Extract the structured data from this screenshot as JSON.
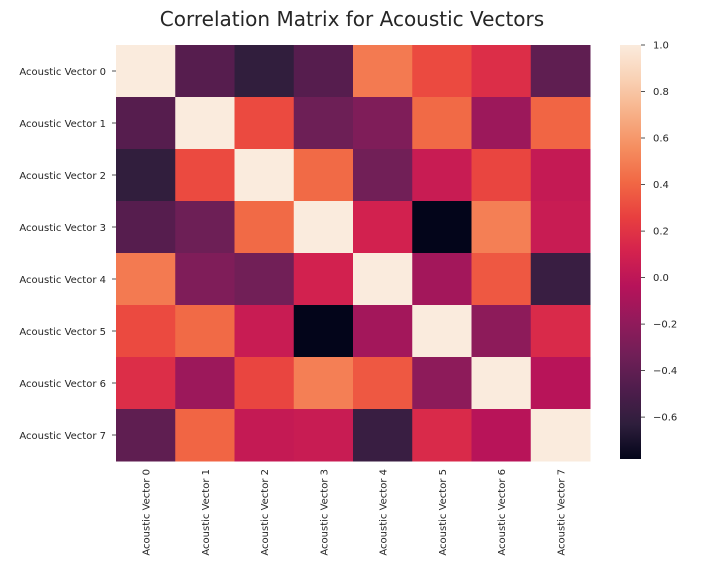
{
  "chart_data": {
    "type": "heatmap",
    "title": "Correlation Matrix for Acoustic Vectors",
    "xlabel": "",
    "ylabel": "",
    "x_categories": [
      "Acoustic Vector 0",
      "Acoustic Vector 1",
      "Acoustic Vector 2",
      "Acoustic Vector 3",
      "Acoustic Vector 4",
      "Acoustic Vector 5",
      "Acoustic Vector 6",
      "Acoustic Vector 7"
    ],
    "y_categories": [
      "Acoustic Vector 0",
      "Acoustic Vector 1",
      "Acoustic Vector 2",
      "Acoustic Vector 3",
      "Acoustic Vector 4",
      "Acoustic Vector 5",
      "Acoustic Vector 6",
      "Acoustic Vector 7"
    ],
    "values": [
      [
        1.0,
        -0.45,
        -0.62,
        -0.45,
        0.48,
        0.3,
        0.17,
        -0.41
      ],
      [
        -0.45,
        1.0,
        0.3,
        -0.35,
        -0.27,
        0.42,
        -0.15,
        0.4
      ],
      [
        -0.62,
        0.3,
        1.0,
        0.42,
        -0.33,
        0.05,
        0.28,
        0.03
      ],
      [
        -0.45,
        -0.35,
        0.42,
        1.0,
        0.1,
        -0.78,
        0.5,
        0.05
      ],
      [
        0.48,
        -0.27,
        -0.33,
        0.1,
        1.0,
        -0.12,
        0.35,
        -0.58
      ],
      [
        0.3,
        0.42,
        0.05,
        -0.78,
        -0.12,
        1.0,
        -0.21,
        0.15
      ],
      [
        0.17,
        -0.15,
        0.28,
        0.5,
        0.35,
        -0.21,
        1.0,
        -0.03
      ],
      [
        -0.41,
        0.4,
        0.03,
        0.05,
        -0.58,
        0.15,
        -0.03,
        1.0
      ]
    ],
    "colorbar": {
      "vmin": -0.78,
      "vmax": 1.0,
      "ticks": [
        1.0,
        0.8,
        0.6,
        0.4,
        0.2,
        0.0,
        -0.2,
        -0.4,
        -0.6
      ],
      "tick_labels": [
        "1.0",
        "0.8",
        "0.6",
        "0.4",
        "0.2",
        "0.0",
        "−0.2",
        "−0.4",
        "−0.6"
      ]
    },
    "colormap": "rocket",
    "colormap_stops": [
      "#03051a",
      "#2e1e3c",
      "#4e1d4c",
      "#701f57",
      "#931a5b",
      "#b6135a",
      "#d4224e",
      "#e83f3f",
      "#f16744",
      "#f58d5f",
      "#f7b087",
      "#f9d1b4",
      "#faebdd"
    ],
    "grid": false,
    "legend": "colorbar-right"
  }
}
